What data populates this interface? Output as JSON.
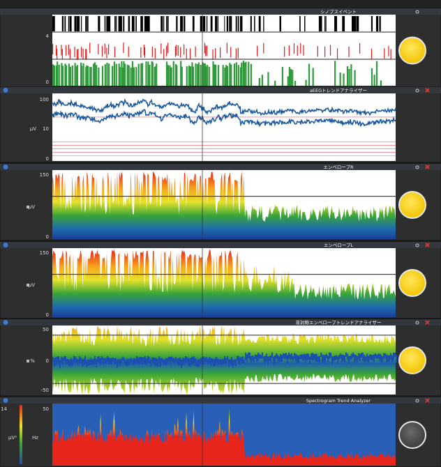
{
  "panels": [
    {
      "title": "シノプスイベント",
      "labels": [
        "4",
        "0"
      ]
    },
    {
      "title": "aEEGトレンドアナライザー",
      "labels": [
        "100",
        "µV",
        "10",
        "0"
      ]
    },
    {
      "title": "エンベロープR",
      "labels": [
        "150",
        "µV",
        "0"
      ]
    },
    {
      "title": "エンベロープL",
      "labels": [
        "150",
        "µV",
        "0"
      ]
    },
    {
      "title": "非対称エンベロープトレンドアナライザー",
      "labels": [
        "50",
        "%",
        "0",
        "-50"
      ]
    },
    {
      "title": "Spectrogram Trend Analyzer",
      "labels": [
        "14",
        "µV²",
        "Hz",
        "50"
      ]
    }
  ]
}
